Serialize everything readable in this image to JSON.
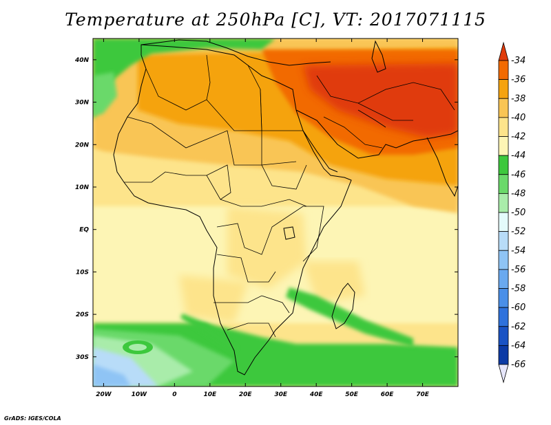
{
  "title": "Temperature at 250hPa [C], VT: 2017071115",
  "credit": "GrADS: IGES/COLA",
  "map": {
    "lon_range": [
      -23,
      80
    ],
    "lat_range": [
      -37,
      45
    ],
    "lat_ticks": [
      {
        "value": 40,
        "label": "40N"
      },
      {
        "value": 30,
        "label": "30N"
      },
      {
        "value": 20,
        "label": "20N"
      },
      {
        "value": 10,
        "label": "10N"
      },
      {
        "value": 0,
        "label": "EQ"
      },
      {
        "value": -10,
        "label": "10S"
      },
      {
        "value": -20,
        "label": "20S"
      },
      {
        "value": -30,
        "label": "30S"
      }
    ],
    "lon_ticks": [
      {
        "value": -20,
        "label": "20W"
      },
      {
        "value": -10,
        "label": "10W"
      },
      {
        "value": 0,
        "label": "0"
      },
      {
        "value": 10,
        "label": "10E"
      },
      {
        "value": 20,
        "label": "20E"
      },
      {
        "value": 30,
        "label": "30E"
      },
      {
        "value": 40,
        "label": "40E"
      },
      {
        "value": 50,
        "label": "50E"
      },
      {
        "value": 60,
        "label": "60E"
      },
      {
        "value": 70,
        "label": "70E"
      }
    ]
  },
  "colorbar": {
    "levels": [
      -34,
      -36,
      -38,
      -40,
      -42,
      -44,
      -46,
      -48,
      -50,
      -52,
      -54,
      -56,
      -58,
      -60,
      -62,
      -64,
      -66
    ],
    "colors": [
      "#e03b0a",
      "#f26b00",
      "#f5a30f",
      "#f9c554",
      "#fde48b",
      "#fdf5b5",
      "#3dc83d",
      "#6ad96a",
      "#a9ecaa",
      "#e4fbfb",
      "#b8dcf8",
      "#8fc4f5",
      "#6aa9ef",
      "#4a8fe8",
      "#2f72dc",
      "#1a53c4",
      "#0c3aa5",
      "#071c78"
    ],
    "low_cap_color": "#e6e6fb"
  }
}
